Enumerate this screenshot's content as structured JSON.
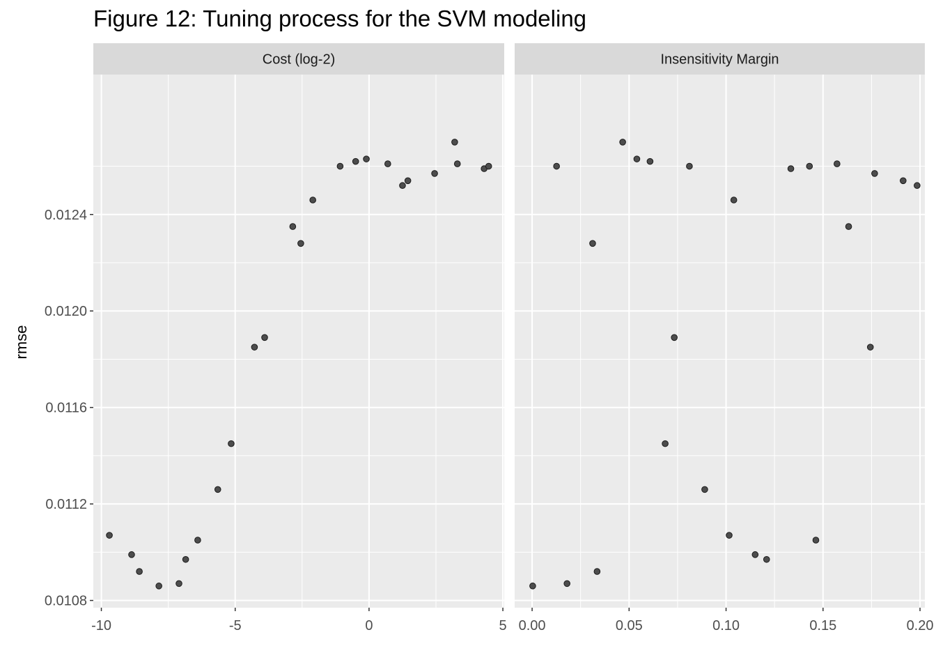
{
  "figure": {
    "title": "Figure 12: Tuning process for the SVM modeling",
    "ylabel": "rmse"
  },
  "style": {
    "panel_bg": "#ebebeb",
    "strip_bg": "#d9d9d9",
    "grid_color": "#ffffff",
    "point_fill": "#4d4d4d",
    "point_stroke": "#1a1a1a",
    "tick_text": "#4d4d4d",
    "strip_text": "#1a1a1a"
  },
  "chart_data": [
    {
      "type": "scatter",
      "facet": "Cost (log-2)",
      "ylabel": "rmse",
      "xlim": [
        -10.3,
        5.05
      ],
      "ylim": [
        0.01077,
        0.01298
      ],
      "x_ticks": [
        -10,
        -5,
        0,
        5
      ],
      "x_tick_labels": [
        "-10",
        "-5",
        "0",
        "5"
      ],
      "y_ticks": [
        0.0108,
        0.0112,
        0.0116,
        0.012,
        0.0124
      ],
      "y_tick_labels": [
        "0.0108",
        "0.0112",
        "0.0116",
        "0.0120",
        "0.0124"
      ],
      "points": [
        {
          "x": -9.7,
          "y": 0.01107
        },
        {
          "x": -8.87,
          "y": 0.01099
        },
        {
          "x": -8.58,
          "y": 0.01092
        },
        {
          "x": -7.85,
          "y": 0.01086
        },
        {
          "x": -7.1,
          "y": 0.01087
        },
        {
          "x": -6.85,
          "y": 0.01097
        },
        {
          "x": -6.4,
          "y": 0.01105
        },
        {
          "x": -5.65,
          "y": 0.01126
        },
        {
          "x": -5.15,
          "y": 0.01145
        },
        {
          "x": -4.28,
          "y": 0.01185
        },
        {
          "x": -3.9,
          "y": 0.01189
        },
        {
          "x": -2.85,
          "y": 0.01235
        },
        {
          "x": -2.55,
          "y": 0.01228
        },
        {
          "x": -2.1,
          "y": 0.01246
        },
        {
          "x": -1.08,
          "y": 0.0126
        },
        {
          "x": -0.5,
          "y": 0.01262
        },
        {
          "x": -0.1,
          "y": 0.01263
        },
        {
          "x": 0.7,
          "y": 0.01261
        },
        {
          "x": 1.25,
          "y": 0.01252
        },
        {
          "x": 1.45,
          "y": 0.01254
        },
        {
          "x": 2.45,
          "y": 0.01257
        },
        {
          "x": 3.2,
          "y": 0.0127
        },
        {
          "x": 3.3,
          "y": 0.01261
        },
        {
          "x": 4.3,
          "y": 0.01259
        },
        {
          "x": 4.47,
          "y": 0.0126
        }
      ]
    },
    {
      "type": "scatter",
      "facet": "Insensitivity Margin",
      "ylabel": "rmse",
      "xlim": [
        -0.009,
        0.2025
      ],
      "ylim": [
        0.01077,
        0.01298
      ],
      "x_ticks": [
        0,
        0.05,
        0.1,
        0.15,
        0.2
      ],
      "x_tick_labels": [
        "0.00",
        "0.05",
        "0.10",
        "0.15",
        "0.20"
      ],
      "y_ticks": [
        0.0108,
        0.0112,
        0.0116,
        0.012,
        0.0124
      ],
      "y_tick_labels": [
        "0.0108",
        "0.0112",
        "0.0116",
        "0.0120",
        "0.0124"
      ],
      "points": [
        {
          "x": 0.0003,
          "y": 0.01086
        },
        {
          "x": 0.0126,
          "y": 0.0126
        },
        {
          "x": 0.018,
          "y": 0.01087
        },
        {
          "x": 0.0312,
          "y": 0.01228
        },
        {
          "x": 0.0335,
          "y": 0.01092
        },
        {
          "x": 0.0467,
          "y": 0.0127
        },
        {
          "x": 0.054,
          "y": 0.01263
        },
        {
          "x": 0.0608,
          "y": 0.01262
        },
        {
          "x": 0.0686,
          "y": 0.01145
        },
        {
          "x": 0.0733,
          "y": 0.01189
        },
        {
          "x": 0.0811,
          "y": 0.0126
        },
        {
          "x": 0.089,
          "y": 0.01126
        },
        {
          "x": 0.1016,
          "y": 0.01107
        },
        {
          "x": 0.104,
          "y": 0.01246
        },
        {
          "x": 0.115,
          "y": 0.01099
        },
        {
          "x": 0.1209,
          "y": 0.01097
        },
        {
          "x": 0.1334,
          "y": 0.01259
        },
        {
          "x": 0.143,
          "y": 0.0126
        },
        {
          "x": 0.1463,
          "y": 0.01105
        },
        {
          "x": 0.1572,
          "y": 0.01261
        },
        {
          "x": 0.1632,
          "y": 0.01235
        },
        {
          "x": 0.1744,
          "y": 0.01185
        },
        {
          "x": 0.1766,
          "y": 0.01257
        },
        {
          "x": 0.1913,
          "y": 0.01254
        },
        {
          "x": 0.1985,
          "y": 0.01252
        }
      ]
    }
  ]
}
